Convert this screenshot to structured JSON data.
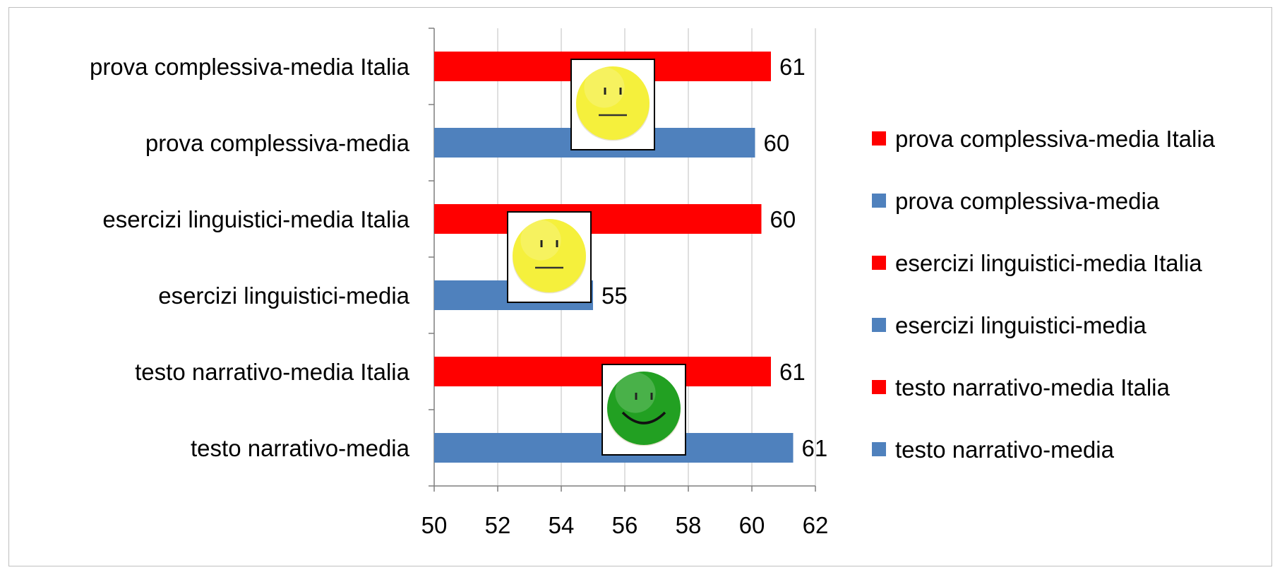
{
  "chart_data": {
    "type": "bar",
    "orientation": "horizontal",
    "title": "",
    "xlabel": "",
    "ylabel": "",
    "xlim": [
      50,
      62
    ],
    "xticks": [
      "50",
      "52",
      "54",
      "56",
      "58",
      "60",
      "62"
    ],
    "grid": true,
    "legend_position": "right",
    "categories": [
      "prova complessiva-media Italia",
      "prova complessiva-media",
      "esercizi linguistici-media Italia",
      "esercizi linguistici-media",
      "testo narrativo-media Italia",
      "testo narrativo-media"
    ],
    "values": [
      60.6,
      60.1,
      60.3,
      55.0,
      60.6,
      61.3
    ],
    "data_labels": [
      "61",
      "60",
      "60",
      "55",
      "61",
      "61"
    ],
    "colors": [
      "#ff0000",
      "#4f81bd",
      "#ff0000",
      "#4f81bd",
      "#ff0000",
      "#4f81bd"
    ],
    "legend": [
      {
        "label": "prova complessiva-media Italia",
        "color": "#ff0000"
      },
      {
        "label": "prova complessiva-media",
        "color": "#4f81bd"
      },
      {
        "label": "esercizi linguistici-media Italia",
        "color": "#ff0000"
      },
      {
        "label": "esercizi linguistici-media",
        "color": "#4f81bd"
      },
      {
        "label": "testo narrativo-media Italia",
        "color": "#ff0000"
      },
      {
        "label": "testo narrativo-media",
        "color": "#4f81bd"
      }
    ],
    "annotations": [
      {
        "icon": "neutral-face-icon",
        "color": "#f5f03c",
        "group": "prova complessiva"
      },
      {
        "icon": "neutral-face-icon",
        "color": "#f5f03c",
        "group": "esercizi linguistici"
      },
      {
        "icon": "smiley-face-icon",
        "color": "#22a022",
        "group": "testo narrativo"
      }
    ]
  }
}
